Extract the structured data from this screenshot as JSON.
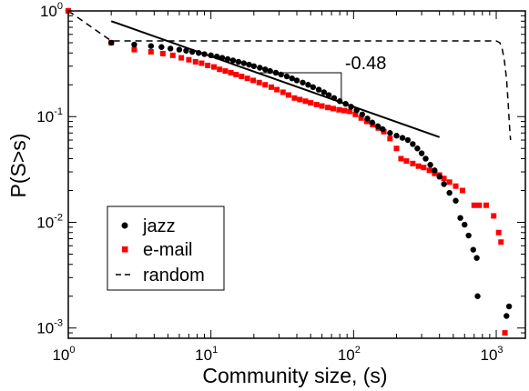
{
  "chart_data": {
    "type": "scatter",
    "xscale": "log",
    "yscale": "log",
    "xlim": [
      1,
      1600
    ],
    "ylim": [
      0.0008,
      1
    ],
    "xlabel": "Community size, (s)",
    "ylabel": "P(S>s)",
    "grid": false,
    "legend_position": "bottom-left",
    "x_ticks": [
      {
        "base": "10",
        "exp": "0",
        "value": 1
      },
      {
        "base": "10",
        "exp": "1",
        "value": 10
      },
      {
        "base": "10",
        "exp": "2",
        "value": 100
      },
      {
        "base": "10",
        "exp": "3",
        "value": 1000
      }
    ],
    "y_ticks": [
      {
        "base": "10",
        "exp": "0",
        "value": 1
      },
      {
        "base": "10",
        "exp": "-1",
        "value": 0.1
      },
      {
        "base": "10",
        "exp": "-2",
        "value": 0.01
      },
      {
        "base": "10",
        "exp": "-3",
        "value": 0.001
      }
    ],
    "series": [
      {
        "name": "jazz",
        "marker": "circle",
        "color": "#000000",
        "points": [
          [
            1,
            1
          ],
          [
            2,
            0.5
          ],
          [
            2.9,
            0.48
          ],
          [
            3.8,
            0.465
          ],
          [
            4.5,
            0.455
          ],
          [
            5.2,
            0.44
          ],
          [
            6,
            0.43
          ],
          [
            6.7,
            0.42
          ],
          [
            7.4,
            0.41
          ],
          [
            8.2,
            0.4
          ],
          [
            9,
            0.39
          ],
          [
            10,
            0.38
          ],
          [
            11,
            0.37
          ],
          [
            12,
            0.36
          ],
          [
            13.1,
            0.35
          ],
          [
            14.3,
            0.34
          ],
          [
            15.6,
            0.33
          ],
          [
            17,
            0.32
          ],
          [
            18.5,
            0.31
          ],
          [
            20,
            0.3
          ],
          [
            22,
            0.29
          ],
          [
            24,
            0.28
          ],
          [
            26,
            0.27
          ],
          [
            28.5,
            0.26
          ],
          [
            31,
            0.25
          ],
          [
            34,
            0.24
          ],
          [
            37,
            0.23
          ],
          [
            40,
            0.22
          ],
          [
            44,
            0.21
          ],
          [
            48,
            0.2
          ],
          [
            52,
            0.19
          ],
          [
            57,
            0.18
          ],
          [
            62,
            0.17
          ],
          [
            67,
            0.16
          ],
          [
            73,
            0.15
          ],
          [
            80,
            0.14
          ],
          [
            88,
            0.132
          ],
          [
            96,
            0.124
          ],
          [
            105,
            0.115
          ],
          [
            115,
            0.105
          ],
          [
            125,
            0.096
          ],
          [
            135,
            0.088
          ],
          [
            148,
            0.081
          ],
          [
            160,
            0.076
          ],
          [
            180,
            0.07
          ],
          [
            200,
            0.066
          ],
          [
            220,
            0.063
          ],
          [
            240,
            0.06
          ],
          [
            260,
            0.055
          ],
          [
            280,
            0.05
          ],
          [
            300,
            0.045
          ],
          [
            320,
            0.04
          ],
          [
            345,
            0.035
          ],
          [
            370,
            0.031
          ],
          [
            400,
            0.027
          ],
          [
            430,
            0.023
          ],
          [
            470,
            0.019
          ],
          [
            520,
            0.016
          ],
          [
            560,
            0.011
          ],
          [
            600,
            0.0095
          ],
          [
            640,
            0.0075
          ],
          [
            690,
            0.0055
          ],
          [
            730,
            0.0046
          ],
          [
            740,
            0.002
          ],
          [
            1180,
            0.0013
          ],
          [
            1230,
            0.0016
          ]
        ]
      },
      {
        "name": "e-mail",
        "marker": "square",
        "color": "#ff0000",
        "points": [
          [
            1,
            1
          ],
          [
            2,
            0.5
          ],
          [
            2.9,
            0.43
          ],
          [
            3.8,
            0.41
          ],
          [
            4.6,
            0.395
          ],
          [
            5.4,
            0.38
          ],
          [
            6.2,
            0.36
          ],
          [
            7,
            0.345
          ],
          [
            7.8,
            0.33
          ],
          [
            8.6,
            0.32
          ],
          [
            9.5,
            0.305
          ],
          [
            10.5,
            0.295
          ],
          [
            11.5,
            0.28
          ],
          [
            12.6,
            0.27
          ],
          [
            13.8,
            0.26
          ],
          [
            15,
            0.25
          ],
          [
            16.4,
            0.24
          ],
          [
            18,
            0.23
          ],
          [
            19.8,
            0.22
          ],
          [
            21.8,
            0.21
          ],
          [
            24,
            0.2
          ],
          [
            26.5,
            0.19
          ],
          [
            29,
            0.18
          ],
          [
            32,
            0.17
          ],
          [
            35,
            0.16
          ],
          [
            38.5,
            0.15
          ],
          [
            42,
            0.145
          ],
          [
            46,
            0.14
          ],
          [
            50,
            0.135
          ],
          [
            55,
            0.13
          ],
          [
            60,
            0.126
          ],
          [
            66,
            0.122
          ],
          [
            72,
            0.119
          ],
          [
            79,
            0.116
          ],
          [
            86,
            0.114
          ],
          [
            94,
            0.112
          ],
          [
            103,
            0.105
          ],
          [
            113,
            0.097
          ],
          [
            124,
            0.09
          ],
          [
            136,
            0.084
          ],
          [
            149,
            0.078
          ],
          [
            163,
            0.072
          ],
          [
            180,
            0.062
          ],
          [
            200,
            0.05
          ],
          [
            215,
            0.04
          ],
          [
            235,
            0.038
          ],
          [
            260,
            0.036
          ],
          [
            285,
            0.034
          ],
          [
            310,
            0.033
          ],
          [
            340,
            0.031
          ],
          [
            370,
            0.029
          ],
          [
            400,
            0.028
          ],
          [
            430,
            0.026
          ],
          [
            470,
            0.024
          ],
          [
            520,
            0.022
          ],
          [
            580,
            0.02
          ],
          [
            700,
            0.0145
          ],
          [
            760,
            0.0145
          ],
          [
            850,
            0.0145
          ],
          [
            960,
            0.0115
          ],
          [
            1040,
            0.008
          ],
          [
            1080,
            0.0065
          ],
          [
            1150,
            0.0009
          ]
        ]
      },
      {
        "name": "random",
        "line_style": "dashed",
        "color": "#000000",
        "points": [
          [
            1,
            1
          ],
          [
            2,
            0.52
          ],
          [
            3,
            0.52
          ],
          [
            10,
            0.52
          ],
          [
            100,
            0.52
          ],
          [
            500,
            0.52
          ],
          [
            1000,
            0.52
          ],
          [
            1060,
            0.5
          ],
          [
            1100,
            0.44
          ],
          [
            1140,
            0.34
          ],
          [
            1180,
            0.23
          ],
          [
            1210,
            0.14
          ],
          [
            1240,
            0.08
          ],
          [
            1260,
            0.06
          ]
        ]
      }
    ],
    "annotations": [
      {
        "type": "fit_line",
        "x": [
          2,
          400
        ],
        "y": [
          0.8,
          0.064
        ]
      },
      {
        "type": "slope_triangle",
        "label": "-0.48",
        "x": [
          22,
          82
        ],
        "y": [
          0.26,
          0.137
        ]
      }
    ]
  }
}
